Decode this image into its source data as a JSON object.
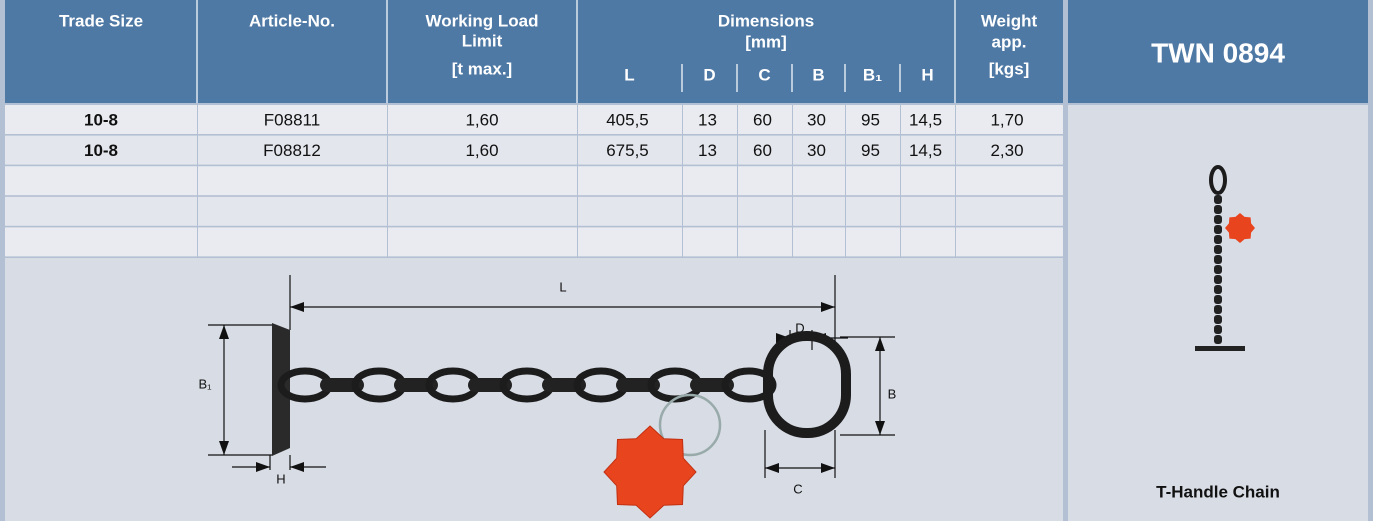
{
  "header": {
    "trade_size": "Trade Size",
    "article_no": "Article-No.",
    "working_load_limit": [
      "Working Load",
      "Limit",
      "[t max.]"
    ],
    "dimensions": [
      "Dimensions",
      "[mm]"
    ],
    "dimension_columns": [
      "L",
      "D",
      "C",
      "B",
      "B₁",
      "H"
    ],
    "weight": [
      "Weight",
      "app.",
      "[kgs]"
    ]
  },
  "table": {
    "rows": [
      [
        "10-8",
        "F08811",
        "1,60",
        "405,5",
        "13",
        "60",
        "30",
        "95",
        "14,5",
        "1,70"
      ],
      [
        "10-8",
        "F08812",
        "1,60",
        "675,5",
        "13",
        "60",
        "30",
        "95",
        "14,5",
        "2,30"
      ]
    ]
  },
  "drawing": {
    "labels": [
      "L",
      "D",
      "B",
      "B₁",
      "H",
      "C"
    ]
  },
  "product": {
    "code": "TWN 0894",
    "name": "T-Handle Chain"
  }
}
